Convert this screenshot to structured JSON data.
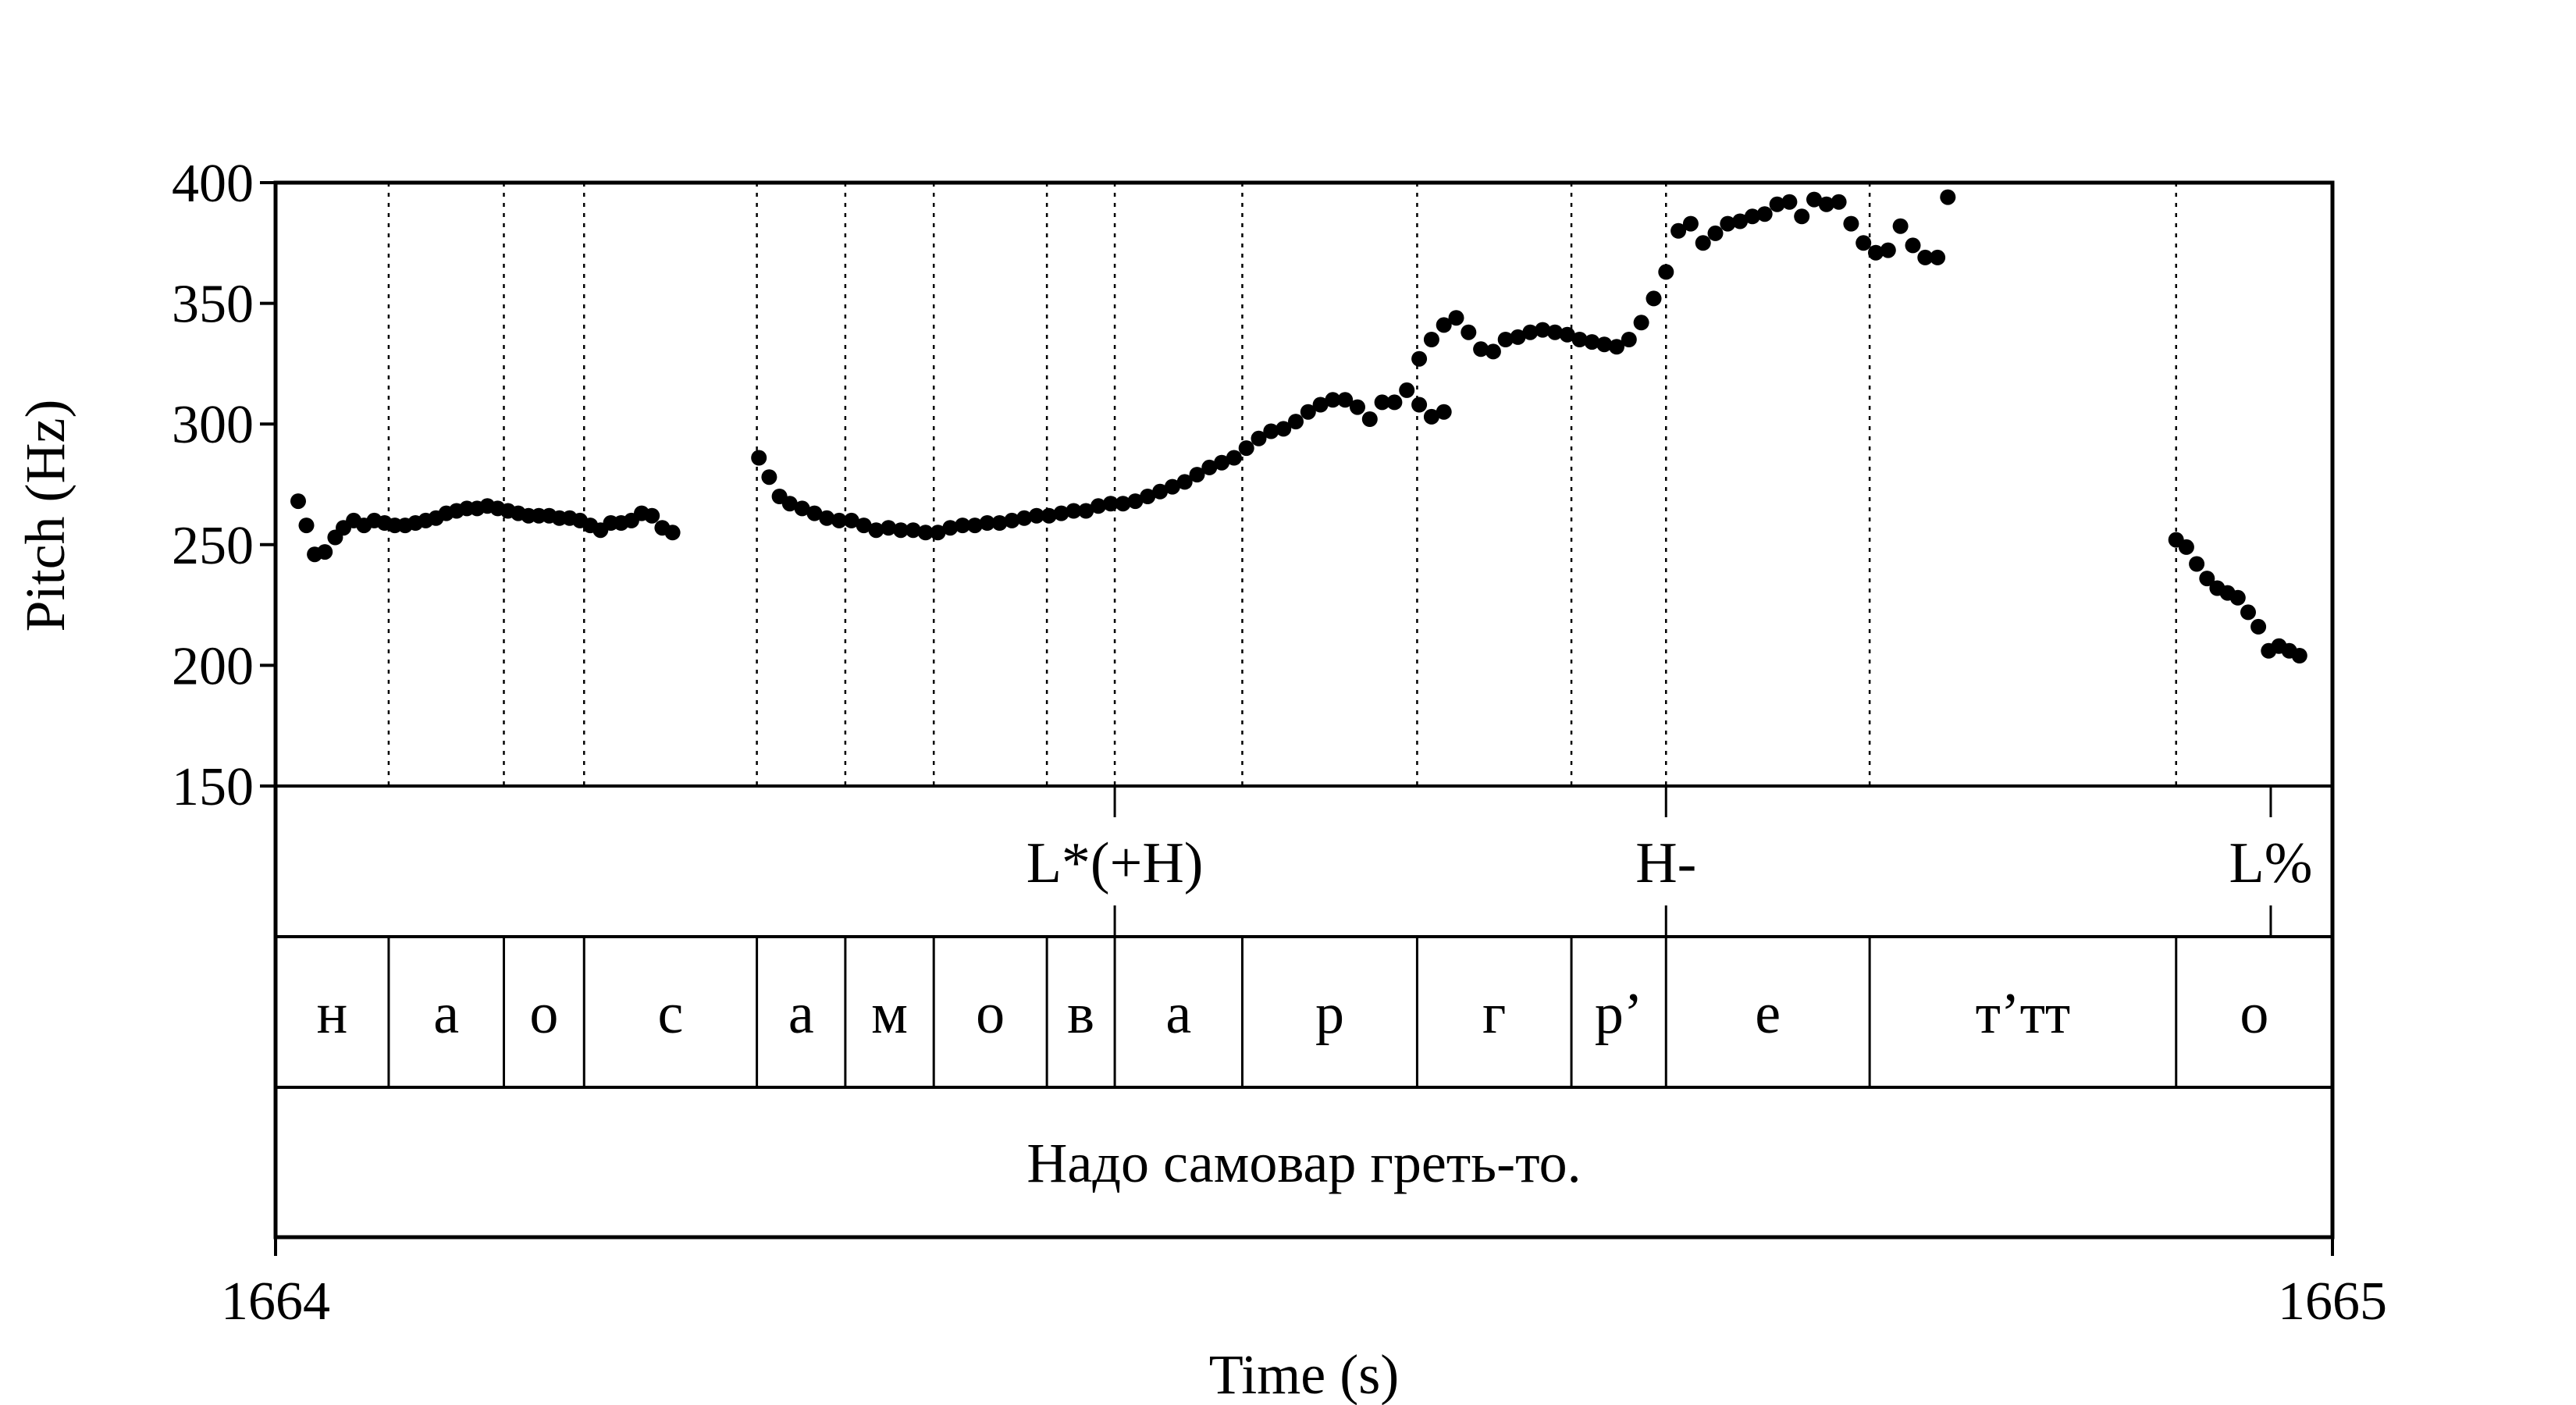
{
  "chart_data": {
    "type": "scatter",
    "title": "",
    "xlabel": "Time (s)",
    "ylabel": "Pitch (Hz)",
    "xlim": [
      1664,
      1665
    ],
    "ylim": [
      150,
      400
    ],
    "x_tick_labels": [
      "1664",
      "1665"
    ],
    "y_ticks": [
      150,
      200,
      250,
      300,
      350,
      400
    ],
    "y_tick_labels": [
      "150",
      "200",
      "250",
      "300",
      "350",
      "400"
    ],
    "grid": false,
    "point_color": "#000000",
    "series": [
      {
        "values": [
          [
            1664.011,
            268
          ],
          [
            1664.015,
            258
          ],
          [
            1664.019,
            246
          ],
          [
            1664.024,
            247
          ],
          [
            1664.029,
            253
          ],
          [
            1664.033,
            257
          ],
          [
            1664.038,
            260
          ],
          [
            1664.043,
            258
          ],
          [
            1664.048,
            260
          ],
          [
            1664.053,
            259
          ],
          [
            1664.058,
            258
          ],
          [
            1664.063,
            258
          ],
          [
            1664.068,
            259
          ],
          [
            1664.073,
            260
          ],
          [
            1664.078,
            261
          ],
          [
            1664.083,
            263
          ],
          [
            1664.088,
            264
          ],
          [
            1664.093,
            265
          ],
          [
            1664.098,
            265
          ],
          [
            1664.103,
            266
          ],
          [
            1664.108,
            265
          ],
          [
            1664.113,
            264
          ],
          [
            1664.118,
            263
          ],
          [
            1664.123,
            262
          ],
          [
            1664.128,
            262
          ],
          [
            1664.133,
            262
          ],
          [
            1664.138,
            261
          ],
          [
            1664.143,
            261
          ],
          [
            1664.148,
            260
          ],
          [
            1664.153,
            258
          ],
          [
            1664.158,
            256
          ],
          [
            1664.163,
            259
          ],
          [
            1664.168,
            259
          ],
          [
            1664.173,
            260
          ],
          [
            1664.178,
            263
          ],
          [
            1664.183,
            262
          ],
          [
            1664.188,
            257
          ],
          [
            1664.193,
            255
          ],
          [
            1664.235,
            286
          ],
          [
            1664.24,
            278
          ],
          [
            1664.245,
            270
          ],
          [
            1664.25,
            267
          ],
          [
            1664.256,
            265
          ],
          [
            1664.262,
            263
          ],
          [
            1664.268,
            261
          ],
          [
            1664.274,
            260
          ],
          [
            1664.28,
            260
          ],
          [
            1664.286,
            258
          ],
          [
            1664.292,
            256
          ],
          [
            1664.298,
            257
          ],
          [
            1664.304,
            256
          ],
          [
            1664.31,
            256
          ],
          [
            1664.316,
            255
          ],
          [
            1664.322,
            255
          ],
          [
            1664.328,
            257
          ],
          [
            1664.334,
            258
          ],
          [
            1664.34,
            258
          ],
          [
            1664.346,
            259
          ],
          [
            1664.352,
            259
          ],
          [
            1664.358,
            260
          ],
          [
            1664.364,
            261
          ],
          [
            1664.37,
            262
          ],
          [
            1664.376,
            262
          ],
          [
            1664.382,
            263
          ],
          [
            1664.388,
            264
          ],
          [
            1664.394,
            264
          ],
          [
            1664.4,
            266
          ],
          [
            1664.406,
            267
          ],
          [
            1664.412,
            267
          ],
          [
            1664.418,
            268
          ],
          [
            1664.424,
            270
          ],
          [
            1664.43,
            272
          ],
          [
            1664.436,
            274
          ],
          [
            1664.442,
            276
          ],
          [
            1664.448,
            279
          ],
          [
            1664.454,
            282
          ],
          [
            1664.46,
            284
          ],
          [
            1664.466,
            286
          ],
          [
            1664.472,
            290
          ],
          [
            1664.478,
            294
          ],
          [
            1664.484,
            297
          ],
          [
            1664.49,
            298
          ],
          [
            1664.496,
            301
          ],
          [
            1664.502,
            305
          ],
          [
            1664.508,
            308
          ],
          [
            1664.514,
            310
          ],
          [
            1664.52,
            310
          ],
          [
            1664.526,
            307
          ],
          [
            1664.532,
            302
          ],
          [
            1664.538,
            309
          ],
          [
            1664.544,
            309
          ],
          [
            1664.55,
            314
          ],
          [
            1664.556,
            308
          ],
          [
            1664.562,
            303
          ],
          [
            1664.568,
            305
          ],
          [
            1664.556,
            327
          ],
          [
            1664.562,
            335
          ],
          [
            1664.568,
            341
          ],
          [
            1664.574,
            344
          ],
          [
            1664.58,
            338
          ],
          [
            1664.586,
            331
          ],
          [
            1664.592,
            330
          ],
          [
            1664.598,
            335
          ],
          [
            1664.604,
            336
          ],
          [
            1664.61,
            338
          ],
          [
            1664.616,
            339
          ],
          [
            1664.622,
            338
          ],
          [
            1664.628,
            337
          ],
          [
            1664.634,
            335
          ],
          [
            1664.64,
            334
          ],
          [
            1664.646,
            333
          ],
          [
            1664.652,
            332
          ],
          [
            1664.658,
            335
          ],
          [
            1664.664,
            342
          ],
          [
            1664.67,
            352
          ],
          [
            1664.676,
            363
          ],
          [
            1664.682,
            380
          ],
          [
            1664.688,
            383
          ],
          [
            1664.694,
            375
          ],
          [
            1664.7,
            379
          ],
          [
            1664.706,
            383
          ],
          [
            1664.712,
            384
          ],
          [
            1664.718,
            386
          ],
          [
            1664.724,
            387
          ],
          [
            1664.73,
            391
          ],
          [
            1664.736,
            392
          ],
          [
            1664.742,
            386
          ],
          [
            1664.748,
            393
          ],
          [
            1664.754,
            391
          ],
          [
            1664.76,
            392
          ],
          [
            1664.766,
            383
          ],
          [
            1664.772,
            375
          ],
          [
            1664.778,
            371
          ],
          [
            1664.784,
            372
          ],
          [
            1664.79,
            382
          ],
          [
            1664.796,
            374
          ],
          [
            1664.802,
            369
          ],
          [
            1664.808,
            369
          ],
          [
            1664.813,
            394
          ],
          [
            1664.924,
            252
          ],
          [
            1664.929,
            249
          ],
          [
            1664.934,
            242
          ],
          [
            1664.939,
            236
          ],
          [
            1664.944,
            232
          ],
          [
            1664.949,
            230
          ],
          [
            1664.954,
            228
          ],
          [
            1664.959,
            222
          ],
          [
            1664.964,
            216
          ],
          [
            1664.969,
            206
          ],
          [
            1664.974,
            208
          ],
          [
            1664.979,
            206
          ],
          [
            1664.984,
            204
          ]
        ]
      }
    ]
  },
  "tones_tier": [
    {
      "label": "L*(+H)",
      "time": 1664.408
    },
    {
      "label": "H-",
      "time": 1664.676
    },
    {
      "label": "L%",
      "time": 1664.97
    }
  ],
  "segments_tier": [
    {
      "label": "н",
      "start": 1664.0,
      "end": 1664.055
    },
    {
      "label": "а",
      "start": 1664.055,
      "end": 1664.111
    },
    {
      "label": "о",
      "start": 1664.111,
      "end": 1664.15
    },
    {
      "label": "с",
      "start": 1664.15,
      "end": 1664.234
    },
    {
      "label": "а",
      "start": 1664.234,
      "end": 1664.277
    },
    {
      "label": "м",
      "start": 1664.277,
      "end": 1664.32
    },
    {
      "label": "о",
      "start": 1664.32,
      "end": 1664.375
    },
    {
      "label": "в",
      "start": 1664.375,
      "end": 1664.408
    },
    {
      "label": "а",
      "start": 1664.408,
      "end": 1664.47
    },
    {
      "label": "р",
      "start": 1664.47,
      "end": 1664.555
    },
    {
      "label": "г",
      "start": 1664.555,
      "end": 1664.63
    },
    {
      "label": "р’",
      "start": 1664.63,
      "end": 1664.676
    },
    {
      "label": "е",
      "start": 1664.676,
      "end": 1664.775
    },
    {
      "label": "т’тт",
      "start": 1664.775,
      "end": 1664.924
    },
    {
      "label": "о",
      "start": 1664.924,
      "end": 1665.0
    }
  ],
  "utterance_tier": {
    "label": "Надо самовар греть-то."
  }
}
